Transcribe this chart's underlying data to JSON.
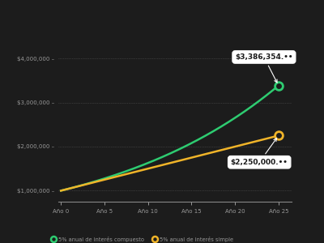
{
  "background_color": "#1c1c1c",
  "plot_bg_color": "#1c1c1c",
  "principal": 1000000,
  "rate": 0.05,
  "years_max": 25,
  "compound_color": "#2ecc71",
  "simple_color": "#f0b429",
  "annotation_text_color": "#1a1a1a",
  "y_ticks": [
    1000000,
    2000000,
    3000000,
    4000000
  ],
  "y_labels": [
    "$1,000,000 –",
    "$2,000,000 –",
    "$3,000,000 –",
    "$4,000,000 –"
  ],
  "ylim": [
    750000,
    4500000
  ],
  "xlim": [
    -0.3,
    26.5
  ],
  "x_years": [
    0,
    5,
    10,
    15,
    20,
    25
  ],
  "x_labels": [
    "Año 0",
    "Año 5",
    "Año 10",
    "Año 15",
    "Año 20",
    "Año 25"
  ],
  "compound_end_label": "$3,386,354.••",
  "simple_end_label": "$2,250,000.••",
  "legend_compound": "5% anual de interés compuesto",
  "legend_simple": "5% anual de interés simple",
  "grid_color": "#666666",
  "axis_color": "#888888",
  "tick_label_color": "#999999",
  "line_width": 1.8,
  "marker_size": 7
}
